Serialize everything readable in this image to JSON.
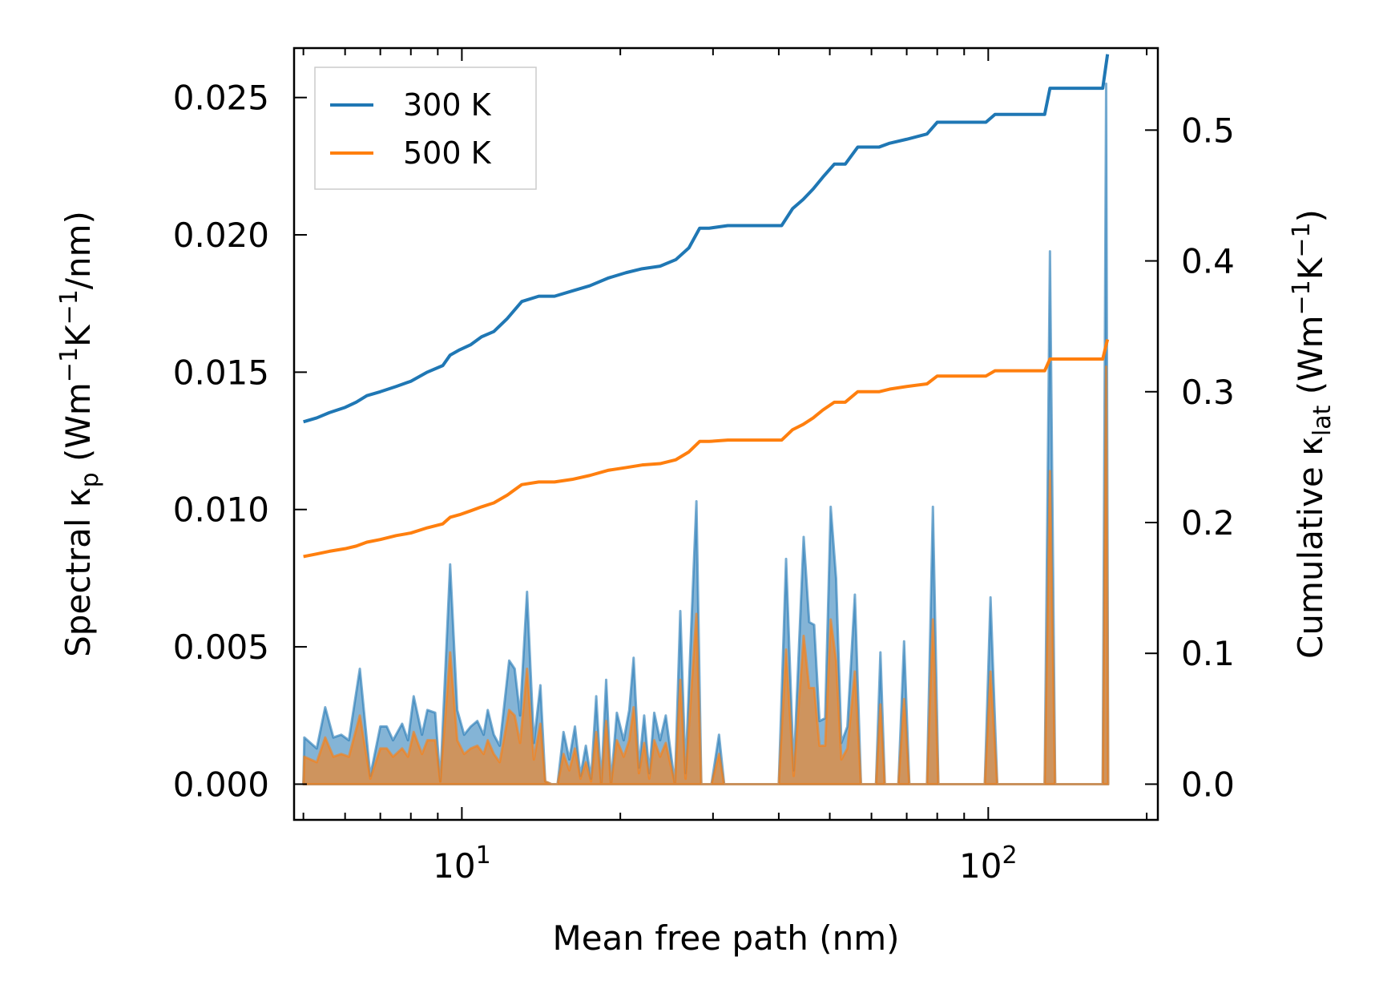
{
  "chart_data": {
    "type": "line",
    "x_scale": "log",
    "xlim": [
      4.8,
      210
    ],
    "x_ticks": [
      10,
      100
    ],
    "x_tick_labels": [
      {
        "base": "10",
        "exp": "1"
      },
      {
        "base": "10",
        "exp": "2"
      }
    ],
    "xlabel": "Mean free path (nm)",
    "left_axis": {
      "label_parts": [
        "Spectral κ",
        "p",
        " (Wm",
        "−1",
        "K",
        "−1",
        "/nm)"
      ],
      "ylim": [
        -0.0013,
        0.0268
      ],
      "ticks": [
        0.0,
        0.005,
        0.01,
        0.015,
        0.02,
        0.025
      ],
      "tick_labels": [
        "0.000",
        "0.005",
        "0.010",
        "0.015",
        "0.020",
        "0.025"
      ]
    },
    "right_axis": {
      "label_parts": [
        "Cumulative κ",
        "lat",
        " (Wm",
        "−1",
        "K",
        "−1",
        ")"
      ],
      "ylim": [
        -0.0273,
        0.5627
      ],
      "ticks": [
        0.0,
        0.1,
        0.2,
        0.3,
        0.4,
        0.5
      ],
      "tick_labels": [
        "0.0",
        "0.1",
        "0.2",
        "0.3",
        "0.4",
        "0.5"
      ]
    },
    "legend": {
      "position": "upper-left",
      "entries": [
        {
          "label": "300 K",
          "color": "#1f77b4"
        },
        {
          "label": "500 K",
          "color": "#ff7f0e"
        }
      ]
    },
    "series": [
      {
        "name": "300 K",
        "color": "#1f77b4",
        "spectral": [
          [
            5.0,
            0.0
          ],
          [
            5.02,
            0.0017
          ],
          [
            5.3,
            0.0013
          ],
          [
            5.5,
            0.0028
          ],
          [
            5.7,
            0.0017
          ],
          [
            5.9,
            0.0018
          ],
          [
            6.1,
            0.0016
          ],
          [
            6.4,
            0.0042
          ],
          [
            6.7,
            0.0003
          ],
          [
            7.0,
            0.0021
          ],
          [
            7.2,
            0.0021
          ],
          [
            7.4,
            0.0016
          ],
          [
            7.7,
            0.0022
          ],
          [
            7.9,
            0.0016
          ],
          [
            8.1,
            0.0032
          ],
          [
            8.4,
            0.0018
          ],
          [
            8.6,
            0.0027
          ],
          [
            8.9,
            0.0026
          ],
          [
            9.1,
            0.0001
          ],
          [
            9.5,
            0.008
          ],
          [
            9.8,
            0.0027
          ],
          [
            10.1,
            0.0018
          ],
          [
            10.4,
            0.0021
          ],
          [
            10.7,
            0.0023
          ],
          [
            11.0,
            0.0018
          ],
          [
            11.2,
            0.0027
          ],
          [
            11.5,
            0.0018
          ],
          [
            11.8,
            0.0014
          ],
          [
            12.3,
            0.0045
          ],
          [
            12.6,
            0.0042
          ],
          [
            12.9,
            0.0025
          ],
          [
            13.3,
            0.007
          ],
          [
            13.7,
            0.0015
          ],
          [
            14.1,
            0.0036
          ],
          [
            14.4,
            0.0001
          ],
          [
            14.8,
            0.0
          ],
          [
            15.2,
            0.0
          ],
          [
            15.6,
            0.0019
          ],
          [
            16.0,
            0.0009
          ],
          [
            16.4,
            0.0021
          ],
          [
            16.8,
            0.0003
          ],
          [
            17.2,
            0.0014
          ],
          [
            17.6,
            0.0002
          ],
          [
            18.0,
            0.0032
          ],
          [
            18.4,
            0.0
          ],
          [
            18.8,
            0.0038
          ],
          [
            19.2,
            0.0
          ],
          [
            19.7,
            0.0026
          ],
          [
            20.3,
            0.0016
          ],
          [
            20.8,
            0.0027
          ],
          [
            21.2,
            0.0046
          ],
          [
            21.7,
            0.0006
          ],
          [
            22.2,
            0.0025
          ],
          [
            22.7,
            0.0004
          ],
          [
            23.2,
            0.0026
          ],
          [
            23.8,
            0.0016
          ],
          [
            24.4,
            0.0025
          ],
          [
            25.4,
            0.0
          ],
          [
            26.0,
            0.0063
          ],
          [
            26.6,
            0.0004
          ],
          [
            27.3,
            0.0059
          ],
          [
            27.9,
            0.0103
          ],
          [
            28.5,
            0.0
          ],
          [
            29.8,
            0.0
          ],
          [
            30.8,
            0.0018
          ],
          [
            31.5,
            0.0
          ],
          [
            40.0,
            0.0
          ],
          [
            41.3,
            0.0082
          ],
          [
            42.7,
            0.0005
          ],
          [
            44.6,
            0.009
          ],
          [
            45.7,
            0.0059
          ],
          [
            46.7,
            0.0058
          ],
          [
            47.8,
            0.0023
          ],
          [
            49.0,
            0.0024
          ],
          [
            50.2,
            0.0101
          ],
          [
            51.4,
            0.0075
          ],
          [
            52.6,
            0.0015
          ],
          [
            54.0,
            0.0021
          ],
          [
            55.8,
            0.0069
          ],
          [
            57.3,
            0.0
          ],
          [
            61.2,
            0.0
          ],
          [
            62.4,
            0.0048
          ],
          [
            63.6,
            0.0
          ],
          [
            67.5,
            0.0
          ],
          [
            69.2,
            0.0052
          ],
          [
            70.8,
            0.0
          ],
          [
            76.5,
            0.0
          ],
          [
            78.5,
            0.0101
          ],
          [
            80.4,
            0.0
          ],
          [
            98.5,
            0.0
          ],
          [
            101.0,
            0.0068
          ],
          [
            104.0,
            0.0
          ],
          [
            128.0,
            0.0
          ],
          [
            131.0,
            0.0194
          ],
          [
            134.0,
            0.0
          ],
          [
            165.0,
            0.0
          ],
          [
            167.5,
            0.0255
          ],
          [
            169.0,
            0.0
          ]
        ],
        "cumulative": [
          [
            5.0,
            0.277
          ],
          [
            5.3,
            0.28
          ],
          [
            5.6,
            0.284
          ],
          [
            6.0,
            0.288
          ],
          [
            6.3,
            0.292
          ],
          [
            6.6,
            0.297
          ],
          [
            7.0,
            0.3
          ],
          [
            7.5,
            0.304
          ],
          [
            8.0,
            0.308
          ],
          [
            8.6,
            0.315
          ],
          [
            9.2,
            0.32
          ],
          [
            9.5,
            0.328
          ],
          [
            9.9,
            0.332
          ],
          [
            10.4,
            0.336
          ],
          [
            10.9,
            0.342
          ],
          [
            11.5,
            0.346
          ],
          [
            12.2,
            0.356
          ],
          [
            13.0,
            0.369
          ],
          [
            14.0,
            0.373
          ],
          [
            15.0,
            0.373
          ],
          [
            16.2,
            0.377
          ],
          [
            17.5,
            0.381
          ],
          [
            19.0,
            0.387
          ],
          [
            20.5,
            0.391
          ],
          [
            22.0,
            0.394
          ],
          [
            23.8,
            0.396
          ],
          [
            25.5,
            0.401
          ],
          [
            27.0,
            0.41
          ],
          [
            28.3,
            0.425
          ],
          [
            29.5,
            0.425
          ],
          [
            32.0,
            0.427
          ],
          [
            40.5,
            0.427
          ],
          [
            42.5,
            0.44
          ],
          [
            44.5,
            0.447
          ],
          [
            46.5,
            0.455
          ],
          [
            48.5,
            0.464
          ],
          [
            51.0,
            0.474
          ],
          [
            53.5,
            0.474
          ],
          [
            56.5,
            0.487
          ],
          [
            62.0,
            0.487
          ],
          [
            65.0,
            0.49
          ],
          [
            70.0,
            0.493
          ],
          [
            76.5,
            0.497
          ],
          [
            80.0,
            0.506
          ],
          [
            99.0,
            0.506
          ],
          [
            103.0,
            0.512
          ],
          [
            128.0,
            0.512
          ],
          [
            131.0,
            0.532
          ],
          [
            165.0,
            0.532
          ],
          [
            168.5,
            0.558
          ]
        ]
      },
      {
        "name": "500 K",
        "color": "#ff7f0e",
        "spectral": [
          [
            5.0,
            0.0
          ],
          [
            5.02,
            0.001
          ],
          [
            5.3,
            0.0008
          ],
          [
            5.5,
            0.0017
          ],
          [
            5.7,
            0.001
          ],
          [
            5.9,
            0.0011
          ],
          [
            6.1,
            0.001
          ],
          [
            6.4,
            0.0025
          ],
          [
            6.7,
            0.0002
          ],
          [
            7.0,
            0.0013
          ],
          [
            7.2,
            0.0013
          ],
          [
            7.4,
            0.001
          ],
          [
            7.7,
            0.0013
          ],
          [
            7.9,
            0.001
          ],
          [
            8.1,
            0.0019
          ],
          [
            8.4,
            0.0011
          ],
          [
            8.6,
            0.0016
          ],
          [
            8.9,
            0.0016
          ],
          [
            9.1,
            0.0001
          ],
          [
            9.5,
            0.0048
          ],
          [
            9.8,
            0.0016
          ],
          [
            10.1,
            0.0011
          ],
          [
            10.4,
            0.0013
          ],
          [
            10.7,
            0.0014
          ],
          [
            11.0,
            0.0011
          ],
          [
            11.2,
            0.0016
          ],
          [
            11.5,
            0.0011
          ],
          [
            11.8,
            0.0008
          ],
          [
            12.3,
            0.0027
          ],
          [
            12.6,
            0.0025
          ],
          [
            12.9,
            0.0015
          ],
          [
            13.3,
            0.0042
          ],
          [
            13.7,
            0.0009
          ],
          [
            14.1,
            0.0022
          ],
          [
            14.4,
            0.0001
          ],
          [
            14.8,
            0.0
          ],
          [
            15.2,
            0.0
          ],
          [
            15.6,
            0.0011
          ],
          [
            16.0,
            0.0005
          ],
          [
            16.4,
            0.0013
          ],
          [
            16.8,
            0.0002
          ],
          [
            17.2,
            0.0008
          ],
          [
            17.6,
            0.0001
          ],
          [
            18.0,
            0.0019
          ],
          [
            18.4,
            0.0
          ],
          [
            18.8,
            0.0023
          ],
          [
            19.2,
            0.0
          ],
          [
            19.7,
            0.0016
          ],
          [
            20.3,
            0.001
          ],
          [
            20.8,
            0.0016
          ],
          [
            21.2,
            0.0028
          ],
          [
            21.7,
            0.0004
          ],
          [
            22.2,
            0.0015
          ],
          [
            22.7,
            0.0002
          ],
          [
            23.2,
            0.0016
          ],
          [
            23.8,
            0.001
          ],
          [
            24.4,
            0.0015
          ],
          [
            25.4,
            0.0
          ],
          [
            26.0,
            0.0038
          ],
          [
            26.6,
            0.0002
          ],
          [
            27.3,
            0.0035
          ],
          [
            27.9,
            0.0062
          ],
          [
            28.5,
            0.0
          ],
          [
            29.8,
            0.0
          ],
          [
            30.8,
            0.0011
          ],
          [
            31.5,
            0.0
          ],
          [
            40.0,
            0.0
          ],
          [
            41.3,
            0.0049
          ],
          [
            42.7,
            0.0003
          ],
          [
            44.6,
            0.0054
          ],
          [
            45.7,
            0.0035
          ],
          [
            46.7,
            0.0035
          ],
          [
            47.8,
            0.0014
          ],
          [
            49.0,
            0.0014
          ],
          [
            50.2,
            0.006
          ],
          [
            51.4,
            0.0045
          ],
          [
            52.6,
            0.0009
          ],
          [
            54.0,
            0.0013
          ],
          [
            55.8,
            0.0041
          ],
          [
            57.3,
            0.0
          ],
          [
            61.2,
            0.0
          ],
          [
            62.4,
            0.0029
          ],
          [
            63.6,
            0.0
          ],
          [
            67.5,
            0.0
          ],
          [
            69.2,
            0.0031
          ],
          [
            70.8,
            0.0
          ],
          [
            76.5,
            0.0
          ],
          [
            78.5,
            0.006
          ],
          [
            80.4,
            0.0
          ],
          [
            98.5,
            0.0
          ],
          [
            101.0,
            0.0041
          ],
          [
            104.0,
            0.0
          ],
          [
            128.0,
            0.0
          ],
          [
            131.0,
            0.0114
          ],
          [
            134.0,
            0.0
          ],
          [
            165.0,
            0.0
          ],
          [
            167.5,
            0.0152
          ],
          [
            169.0,
            0.0
          ]
        ],
        "cumulative": [
          [
            5.0,
            0.174
          ],
          [
            5.3,
            0.176
          ],
          [
            5.6,
            0.178
          ],
          [
            6.0,
            0.18
          ],
          [
            6.3,
            0.182
          ],
          [
            6.6,
            0.185
          ],
          [
            7.0,
            0.187
          ],
          [
            7.5,
            0.19
          ],
          [
            8.0,
            0.192
          ],
          [
            8.6,
            0.196
          ],
          [
            9.2,
            0.199
          ],
          [
            9.5,
            0.204
          ],
          [
            9.9,
            0.206
          ],
          [
            10.4,
            0.209
          ],
          [
            10.9,
            0.212
          ],
          [
            11.5,
            0.215
          ],
          [
            12.2,
            0.221
          ],
          [
            13.0,
            0.229
          ],
          [
            14.0,
            0.231
          ],
          [
            15.0,
            0.231
          ],
          [
            16.2,
            0.233
          ],
          [
            17.5,
            0.236
          ],
          [
            19.0,
            0.24
          ],
          [
            20.5,
            0.242
          ],
          [
            22.0,
            0.244
          ],
          [
            23.8,
            0.245
          ],
          [
            25.5,
            0.248
          ],
          [
            27.0,
            0.254
          ],
          [
            28.3,
            0.262
          ],
          [
            29.5,
            0.262
          ],
          [
            32.0,
            0.263
          ],
          [
            40.5,
            0.263
          ],
          [
            42.5,
            0.271
          ],
          [
            44.5,
            0.275
          ],
          [
            46.5,
            0.28
          ],
          [
            48.5,
            0.286
          ],
          [
            51.0,
            0.292
          ],
          [
            53.5,
            0.292
          ],
          [
            56.5,
            0.3
          ],
          [
            62.0,
            0.3
          ],
          [
            65.0,
            0.302
          ],
          [
            70.0,
            0.304
          ],
          [
            76.5,
            0.306
          ],
          [
            80.0,
            0.312
          ],
          [
            99.0,
            0.312
          ],
          [
            103.0,
            0.316
          ],
          [
            128.0,
            0.316
          ],
          [
            131.0,
            0.325
          ],
          [
            165.0,
            0.325
          ],
          [
            168.5,
            0.34
          ]
        ]
      }
    ]
  }
}
